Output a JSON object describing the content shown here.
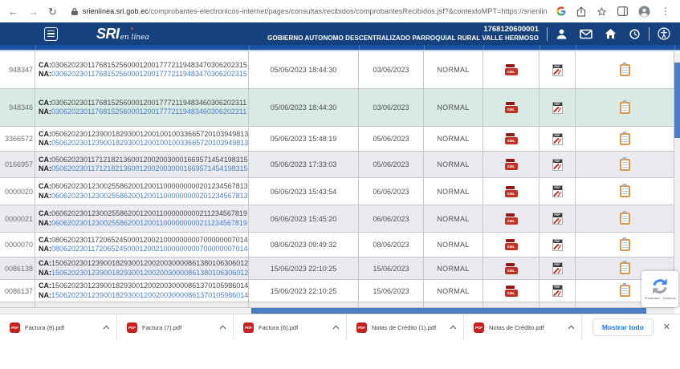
{
  "browser": {
    "url": {
      "domain": "srienlinea.sri.gob.ec",
      "path": "/comprobantes-electronicos-internet/pages/consultas/recibidos/comprobantesRecibidos.jsf?&contextoMPT=https://srienlinea.sri.gob.ec/tupor..."
    }
  },
  "header": {
    "logo": {
      "sri": "SRI",
      "tagline": "en línea"
    },
    "ruc": "1768120600001",
    "entity_name": "GOBIERNO AUTONOMO DESCENTRALIZADO PARROQUIAL RURAL VALLE HERMOSO"
  },
  "table": {
    "ca_label": "CA:",
    "na_label": "NA:",
    "rows": [
      {
        "doc": "948347",
        "ca": "0306202301176815256000120017772119483470306202315",
        "na": "0306202301176815256000120017772119483470306202315",
        "auth_datetime": "05/06/2023 18:44:30",
        "issue_date": "03/06/2023",
        "status": "NORMAL",
        "bg": "white"
      },
      {
        "doc": "948346",
        "ca": "0306202301176815256000120017772119483460306202311",
        "na": "0306202301176815256000120017772119483460306202311",
        "auth_datetime": "05/06/2023 18:44:30",
        "issue_date": "03/06/2023",
        "status": "NORMAL",
        "bg": "teal"
      },
      {
        "doc": "3366572",
        "ca": "0506202301239001829300120010010033665720103949813",
        "na": "0506202301239001829300120010010033665720103949813",
        "auth_datetime": "05/06/2023 15:48:19",
        "issue_date": "05/06/2023",
        "status": "NORMAL",
        "bg": "white"
      },
      {
        "doc": "0166957",
        "ca": "0506202301171218213600120020030001669571454198315",
        "na": "0506202301171218213600120020030001669571454198315",
        "auth_datetime": "05/06/2023 17:33:03",
        "issue_date": "05/06/2023",
        "status": "NORMAL",
        "bg": "grey"
      },
      {
        "doc": "0000020",
        "ca": "0606202301230025586200120011000000000201234567813",
        "na": "0606202301230025586200120011000000000201234567813",
        "auth_datetime": "06/06/2023 15:43:54",
        "issue_date": "06/06/2023",
        "status": "NORMAL",
        "bg": "white"
      },
      {
        "doc": "0000021",
        "ca": "0606202301230025586200120011000000000211234567819",
        "na": "0606202301230025586200120011000000000211234567819",
        "auth_datetime": "06/06/2023 15:45:20",
        "issue_date": "06/06/2023",
        "status": "NORMAL",
        "bg": "grey"
      },
      {
        "doc": "0000070",
        "ca": "0806202301172065245000120021000000000700000007014",
        "na": "0806202301172065245000120021000000000700000007014",
        "auth_datetime": "08/06/2023 09:49:32",
        "issue_date": "08/06/2023",
        "status": "NORMAL",
        "bg": "white"
      },
      {
        "doc": "0086138",
        "ca": "1506202301239001829300120020030000861380106306012",
        "na": "1506202301239001829300120020030000861380106306012",
        "auth_datetime": "15/06/2023 22:10:25",
        "issue_date": "15/06/2023",
        "status": "NORMAL",
        "bg": "grey"
      },
      {
        "doc": "0086137",
        "ca": "1506202301239001829300120020030000861370105986014",
        "na": "1506202301239001829300120020030000861370105986014",
        "auth_datetime": "15/06/2023 22:10:25",
        "issue_date": "15/06/2023",
        "status": "NORMAL",
        "bg": "white"
      }
    ]
  },
  "icons": {
    "xml_label": "XML",
    "pdf_label": "PDF"
  },
  "recaptcha": {
    "terms": "Privacidad - Términos"
  },
  "downloads": {
    "files": [
      "Factura (8).pdf",
      "Factura (7).pdf",
      "Factura (6).pdf",
      "Notas de Crédito (1).pdf",
      "Notas de Crédito.pdf"
    ],
    "show_all": "Mostrar todo"
  },
  "colors": {
    "header_blue": "#15417E",
    "strip_blue": "#1751A1",
    "scrollbar_blue": "#4D7DC0",
    "link_blue": "#4D7FC0",
    "row_teal": "#D8EAE3",
    "row_grey": "#E9EBF1",
    "pdf_red": "#C5221F",
    "xml_red": "#C13226",
    "calendar_orange": "#D79A4D"
  }
}
